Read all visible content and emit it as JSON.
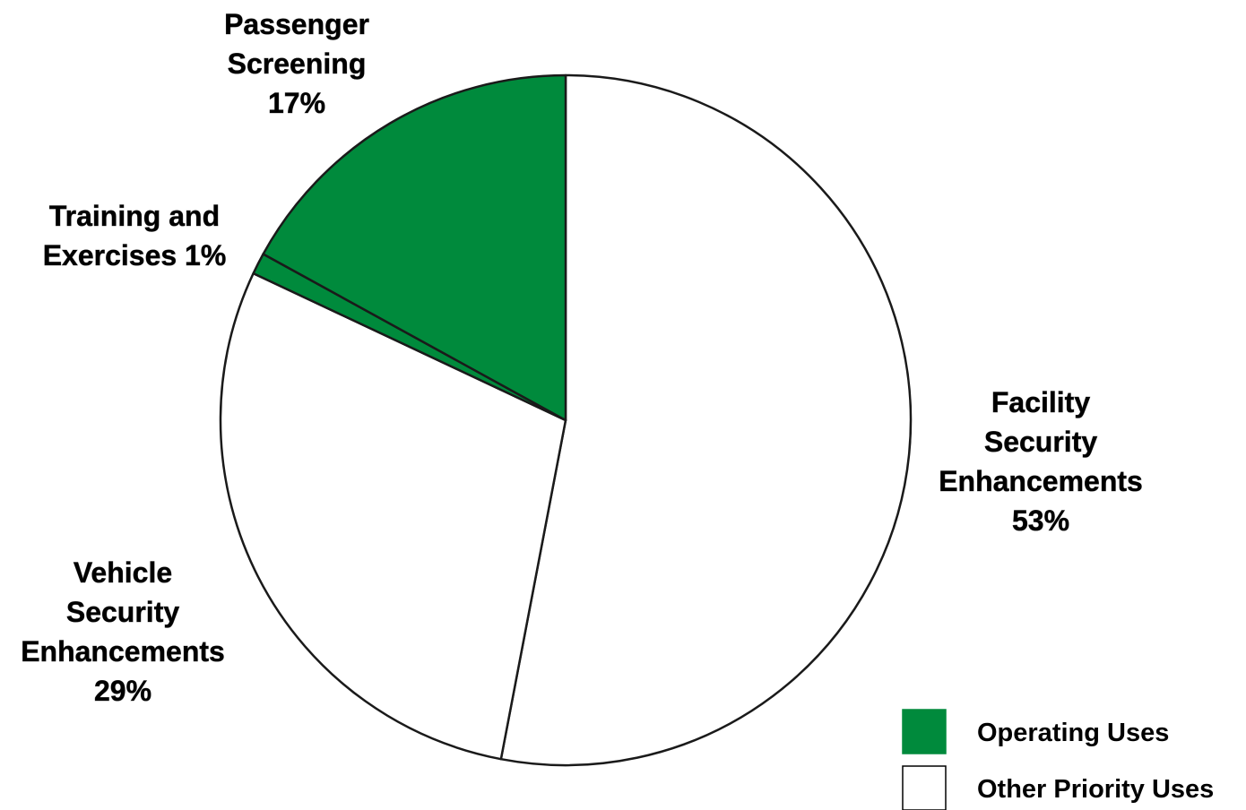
{
  "chart_data": {
    "type": "pie",
    "title": "",
    "slices": [
      {
        "name": "Facility Security Enhancements",
        "value": 53,
        "category": "Other Priority Uses",
        "label_lines": [
          "Facility",
          "Security",
          "Enhancements",
          "53%"
        ]
      },
      {
        "name": "Vehicle Security Enhancements",
        "value": 29,
        "category": "Other Priority Uses",
        "label_lines": [
          "Vehicle",
          "Security",
          "Enhancements",
          "29%"
        ]
      },
      {
        "name": "Training and Exercises",
        "value": 1,
        "category": "Operating Uses",
        "label_lines": [
          "Training and",
          "Exercises 1%"
        ]
      },
      {
        "name": "Passenger Screening",
        "value": 17,
        "category": "Operating Uses",
        "label_lines": [
          "Passenger",
          "Screening",
          "17%"
        ]
      }
    ],
    "start_angle_deg": 0,
    "direction": "clockwise",
    "legend": {
      "placement": "bottom-right",
      "items": [
        {
          "label": "Operating Uses",
          "color": "#008a3c"
        },
        {
          "label": "Other Priority Uses",
          "color": "#ffffff"
        }
      ]
    },
    "colors": {
      "Operating Uses": "#008a3c",
      "Other Priority Uses": "#ffffff",
      "outline": "#1a1a1a"
    }
  }
}
